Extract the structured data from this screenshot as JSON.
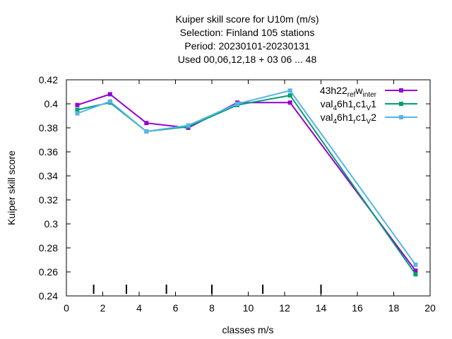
{
  "chart_data": {
    "type": "line",
    "title_lines": [
      "Kuiper skill score  for U10m (m/s)",
      "Selection: Finland    105 stations",
      "Period: 20230101-20230131",
      "Used  00,06,12,18  + 03 06 ... 48"
    ],
    "xlabel": "classes m/s",
    "ylabel": "Kuiper skill score",
    "xlim": [
      0,
      20
    ],
    "ylim": [
      0.24,
      0.42
    ],
    "xticks": [
      0,
      2,
      4,
      6,
      8,
      10,
      12,
      14,
      16,
      18,
      20
    ],
    "yticks": [
      0.24,
      0.26,
      0.28,
      0.3,
      0.32,
      0.34,
      0.36,
      0.38,
      0.4,
      0.42
    ],
    "ytick_labels": [
      "0.24",
      "0.26",
      "0.28",
      "0.3",
      "0.32",
      "0.34",
      "0.36",
      "0.38",
      "0.4",
      "0.42"
    ],
    "class_markers_x": [
      1.5,
      3.3,
      5.5,
      8.0,
      10.8,
      14.0
    ],
    "grid": false,
    "legend_position": "top-right",
    "series": [
      {
        "name": "43h22_ref_winter",
        "legend_parts": [
          "43h22",
          "ref",
          "w",
          "inter"
        ],
        "color": "#9400d3",
        "x": [
          0.6,
          2.4,
          4.4,
          6.7,
          9.4,
          12.3,
          19.2
        ],
        "y": [
          0.399,
          0.408,
          0.384,
          0.38,
          0.401,
          0.401,
          0.261
        ]
      },
      {
        "name": "val_46h1_rc1_v1",
        "legend_parts": [
          "val",
          "4",
          "6h1",
          "r",
          "c1",
          "V",
          "1"
        ],
        "color": "#009e73",
        "x": [
          0.6,
          2.4,
          4.4,
          6.7,
          9.4,
          12.3,
          19.2
        ],
        "y": [
          0.395,
          0.401,
          0.377,
          0.381,
          0.399,
          0.407,
          0.258
        ]
      },
      {
        "name": "val_46h1_rc1_v2",
        "legend_parts": [
          "val",
          "4",
          "6h1",
          "r",
          "c1",
          "V",
          "2"
        ],
        "color": "#56b4e9",
        "x": [
          0.6,
          2.4,
          4.4,
          6.7,
          9.4,
          12.3,
          19.2
        ],
        "y": [
          0.392,
          0.402,
          0.377,
          0.382,
          0.4,
          0.411,
          0.266
        ]
      }
    ]
  }
}
